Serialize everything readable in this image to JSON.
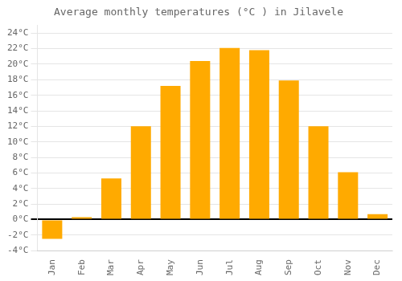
{
  "chart_data": {
    "type": "bar",
    "title": "Average monthly temperatures (°C ) in Jilavele",
    "categories": [
      "Jan",
      "Feb",
      "Mar",
      "Apr",
      "May",
      "Jun",
      "Jul",
      "Aug",
      "Sep",
      "Oct",
      "Nov",
      "Dec"
    ],
    "values": [
      -2.5,
      0.3,
      5.3,
      12.0,
      17.2,
      20.4,
      22.1,
      21.8,
      17.9,
      12.0,
      6.1,
      0.7
    ],
    "color": "#FFAA00",
    "ylim": [
      -4,
      25
    ],
    "yticks": [
      {
        "value": -4,
        "label": "-4°C"
      },
      {
        "value": -2,
        "label": "-2°C"
      },
      {
        "value": 0,
        "label": "0°C"
      },
      {
        "value": 2,
        "label": "2°C"
      },
      {
        "value": 4,
        "label": "4°C"
      },
      {
        "value": 6,
        "label": "6°C"
      },
      {
        "value": 8,
        "label": "8°C"
      },
      {
        "value": 10,
        "label": "10°C"
      },
      {
        "value": 12,
        "label": "12°C"
      },
      {
        "value": 14,
        "label": "14°C"
      },
      {
        "value": 16,
        "label": "16°C"
      },
      {
        "value": 18,
        "label": "18°C"
      },
      {
        "value": 20,
        "label": "20°C"
      },
      {
        "value": 22,
        "label": "22°C"
      },
      {
        "value": 24,
        "label": "24°C"
      }
    ],
    "grid": true
  }
}
